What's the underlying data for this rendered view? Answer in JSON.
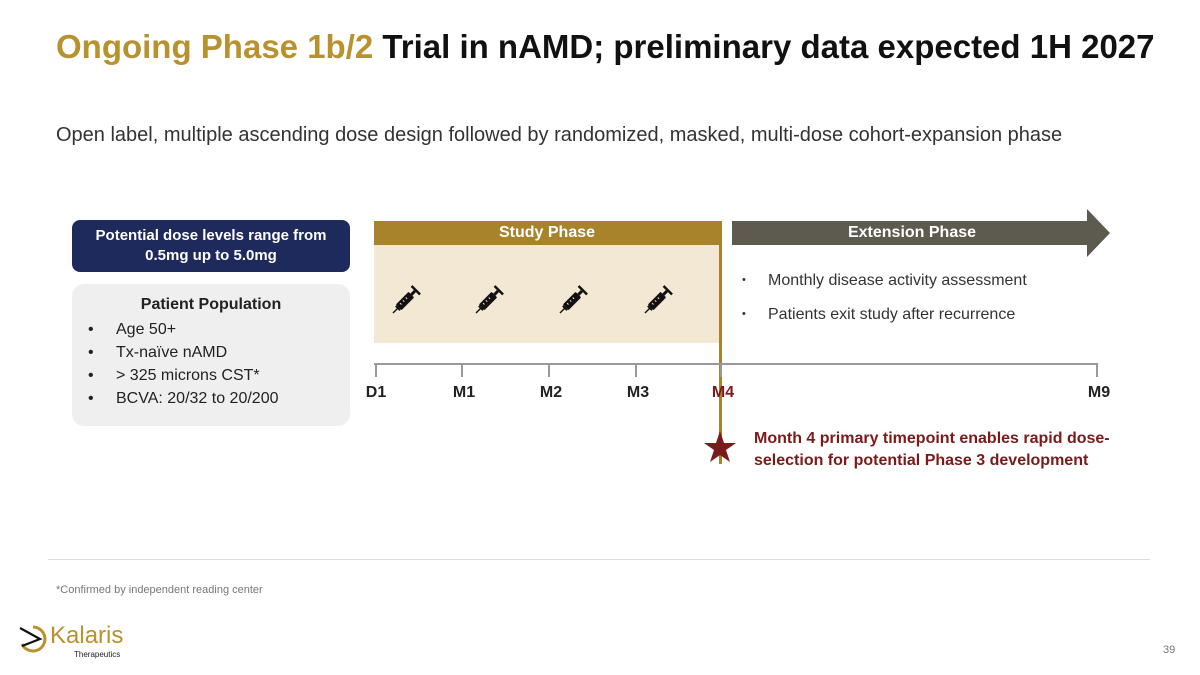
{
  "header": {
    "title_highlight": "Ongoing Phase 1b/2",
    "title_rest": " Trial in nAMD; preliminary data expected 1H 2027",
    "subtitle": "Open label, multiple ascending dose design followed by randomized, masked, multi-dose cohort-expansion phase"
  },
  "dose_box": "Potential dose levels range from 0.5mg up to 5.0mg",
  "population": {
    "title": "Patient Population",
    "items": [
      "Age 50+",
      "Tx-naïve nAMD",
      "> 325 microns CST*",
      "BCVA: 20/32 to 20/200"
    ]
  },
  "study_phase": {
    "label": "Study Phase",
    "icon": "syringe-icon",
    "injections": 4
  },
  "extension_phase": {
    "label": "Extension Phase",
    "bullets": [
      "Monthly disease activity assessment",
      "Patients exit study after recurrence"
    ]
  },
  "timeline": {
    "ticks": [
      "D1",
      "M1",
      "M2",
      "M3",
      "M4",
      "M9"
    ],
    "highlight": "M4"
  },
  "note": "Month 4 primary timepoint enables rapid dose-selection for potential Phase 3 development",
  "footnote": "*Confirmed by independent reading center",
  "logo": {
    "name": "Kalaris",
    "sub": "Therapeutics"
  },
  "page_number": "39",
  "colors": {
    "gold": "#a8832b",
    "navy": "#1f2a5c",
    "extension": "#5d5a4f",
    "red": "#7b1a1a"
  }
}
